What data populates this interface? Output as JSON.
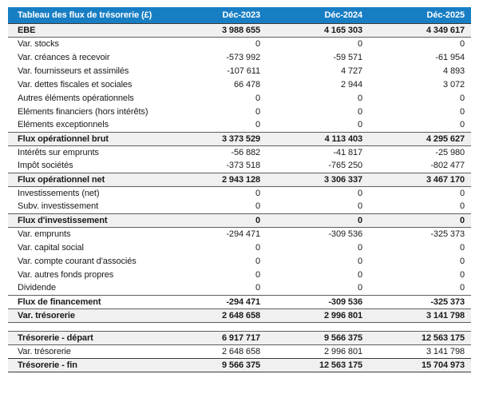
{
  "colors": {
    "header_bg": "#177ec4",
    "header_text": "#ffffff",
    "total_row_bg": "#f0f0f0"
  },
  "table": {
    "title": "Tableau des flux de trésorerie (£)",
    "columns": [
      "Déc-2023",
      "Déc-2024",
      "Déc-2025"
    ],
    "rows": [
      {
        "label": "EBE",
        "values": [
          "3 988 655",
          "4 165 303",
          "4 349 617"
        ],
        "style": "total"
      },
      {
        "label": "Var. stocks",
        "values": [
          "0",
          "0",
          "0"
        ],
        "style": "normal"
      },
      {
        "label": "Var. créances à recevoir",
        "values": [
          "-573 992",
          "-59 571",
          "-61 954"
        ],
        "style": "normal"
      },
      {
        "label": "Var. fournisseurs et assimilés",
        "values": [
          "-107 611",
          "4 727",
          "4 893"
        ],
        "style": "normal"
      },
      {
        "label": "Var. dettes fiscales et sociales",
        "values": [
          "66 478",
          "2 944",
          "3 072"
        ],
        "style": "normal"
      },
      {
        "label": "Autres éléments opérationnels",
        "values": [
          "0",
          "0",
          "0"
        ],
        "style": "normal"
      },
      {
        "label": "Eléments financiers (hors intérêts)",
        "values": [
          "0",
          "0",
          "0"
        ],
        "style": "normal"
      },
      {
        "label": "Eléments exceptionnels",
        "values": [
          "0",
          "0",
          "0"
        ],
        "style": "normal"
      },
      {
        "label": "Flux opérationnel brut",
        "values": [
          "3 373 529",
          "4 113 403",
          "4 295 627"
        ],
        "style": "total"
      },
      {
        "label": "Intérêts sur emprunts",
        "values": [
          "-56 882",
          "-41 817",
          "-25 980"
        ],
        "style": "normal"
      },
      {
        "label": "Impôt sociétés",
        "values": [
          "-373 518",
          "-765 250",
          "-802 477"
        ],
        "style": "normal"
      },
      {
        "label": "Flux opérationnel net",
        "values": [
          "2 943 128",
          "3 306 337",
          "3 467 170"
        ],
        "style": "total"
      },
      {
        "label": "Investissements (net)",
        "values": [
          "0",
          "0",
          "0"
        ],
        "style": "normal"
      },
      {
        "label": "Subv. investissement",
        "values": [
          "0",
          "0",
          "0"
        ],
        "style": "normal"
      },
      {
        "label": "Flux d'investissement",
        "values": [
          "0",
          "0",
          "0"
        ],
        "style": "total"
      },
      {
        "label": "Var. emprunts",
        "values": [
          "-294 471",
          "-309 536",
          "-325 373"
        ],
        "style": "normal"
      },
      {
        "label": "Var. capital social",
        "values": [
          "0",
          "0",
          "0"
        ],
        "style": "normal"
      },
      {
        "label": "Var. compte courant d'associés",
        "values": [
          "0",
          "0",
          "0"
        ],
        "style": "normal"
      },
      {
        "label": "Var. autres fonds propres",
        "values": [
          "0",
          "0",
          "0"
        ],
        "style": "normal"
      },
      {
        "label": "Dividende",
        "values": [
          "0",
          "0",
          "0"
        ],
        "style": "normal"
      },
      {
        "label": "Flux de financement",
        "values": [
          "-294 471",
          "-309 536",
          "-325 373"
        ],
        "style": "total-plain"
      },
      {
        "label": "Var. trésorerie",
        "values": [
          "2 648 658",
          "2 996 801",
          "3 141 798"
        ],
        "style": "total"
      }
    ],
    "summary_rows": [
      {
        "label": "Trésorerie - départ",
        "values": [
          "6 917 717",
          "9 566 375",
          "12 563 175"
        ],
        "style": "total"
      },
      {
        "label": "Var. trésorerie",
        "values": [
          "2 648 658",
          "2 996 801",
          "3 141 798"
        ],
        "style": "normal"
      },
      {
        "label": "Trésorerie - fin",
        "values": [
          "9 566 375",
          "12 563 175",
          "15 704 973"
        ],
        "style": "total-strong"
      }
    ]
  }
}
